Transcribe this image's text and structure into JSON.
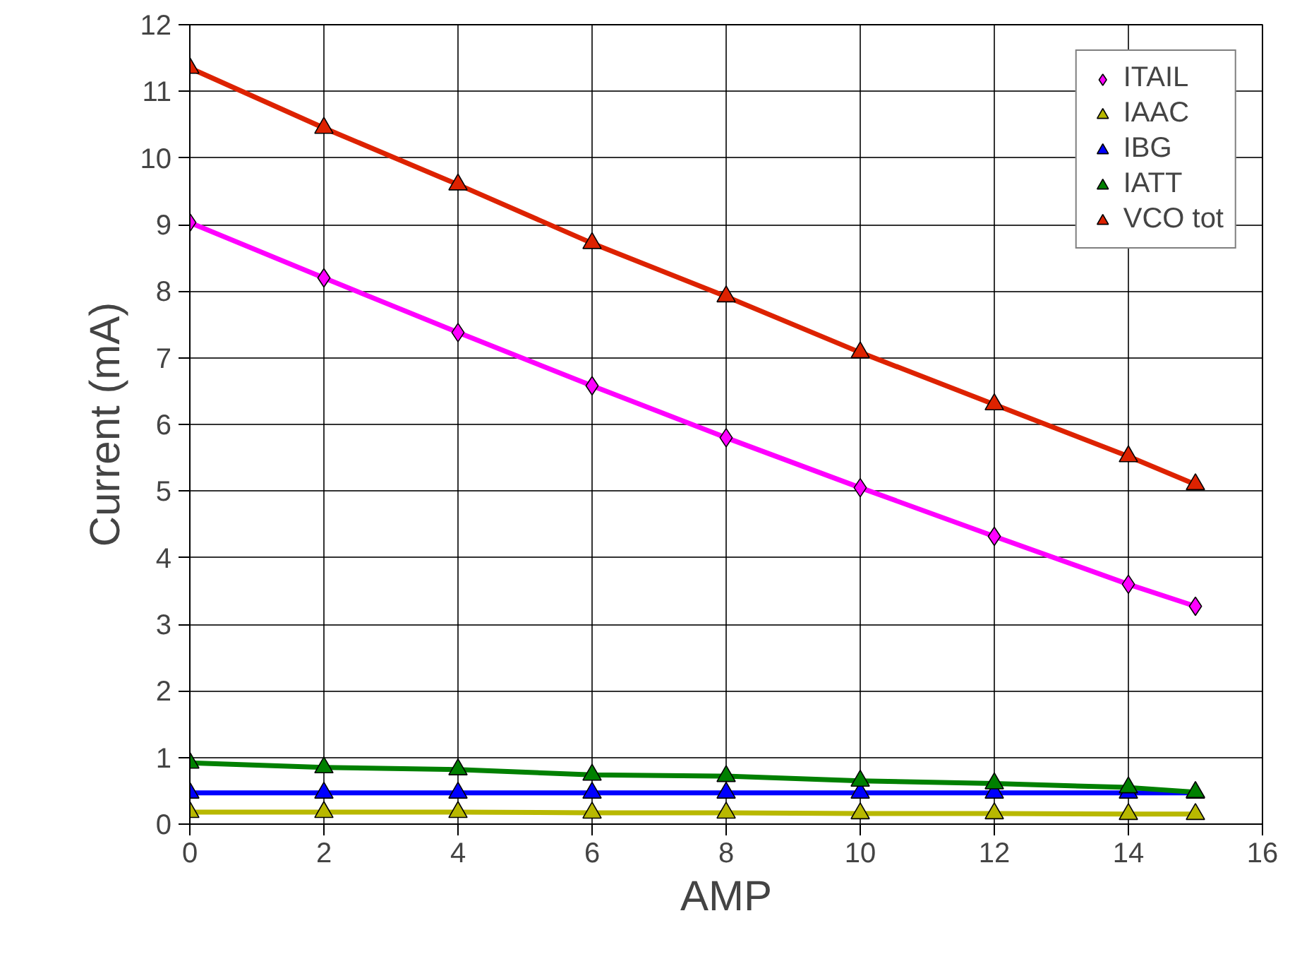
{
  "chart_data": {
    "type": "line",
    "xlabel": "AMP",
    "ylabel": "Current (mA)",
    "x": [
      0,
      2,
      4,
      6,
      8,
      10,
      12,
      14,
      15
    ],
    "series": [
      {
        "name": "ITAIL",
        "color": "#ff00ff",
        "marker": "diamond",
        "values": [
          9.03,
          8.2,
          7.38,
          6.58,
          5.8,
          5.05,
          4.32,
          3.6,
          3.27
        ]
      },
      {
        "name": "IAAC",
        "color": "#b8b800",
        "marker": "triangle",
        "values": [
          0.18,
          0.18,
          0.18,
          0.17,
          0.17,
          0.16,
          0.16,
          0.15,
          0.15
        ]
      },
      {
        "name": "IBG",
        "color": "#0000ff",
        "marker": "triangle",
        "values": [
          0.47,
          0.47,
          0.47,
          0.47,
          0.47,
          0.47,
          0.47,
          0.47,
          0.47
        ]
      },
      {
        "name": "IATT",
        "color": "#008000",
        "marker": "triangle",
        "values": [
          0.92,
          0.85,
          0.82,
          0.74,
          0.72,
          0.65,
          0.61,
          0.55,
          0.48
        ]
      },
      {
        "name": "VCO tot",
        "color": "#dd2200",
        "marker": "triangle",
        "values": [
          11.35,
          10.45,
          9.6,
          8.72,
          7.92,
          7.08,
          6.3,
          5.52,
          5.1
        ]
      }
    ],
    "xlim": [
      0,
      16
    ],
    "xticks": [
      0,
      2,
      4,
      6,
      8,
      10,
      12,
      14,
      16
    ],
    "ylim": [
      0,
      12
    ],
    "yticks": [
      0,
      1,
      2,
      3,
      4,
      5,
      6,
      7,
      8,
      9,
      10,
      11,
      12
    ],
    "grid": true,
    "legend": "top right",
    "line_style": "solid"
  }
}
